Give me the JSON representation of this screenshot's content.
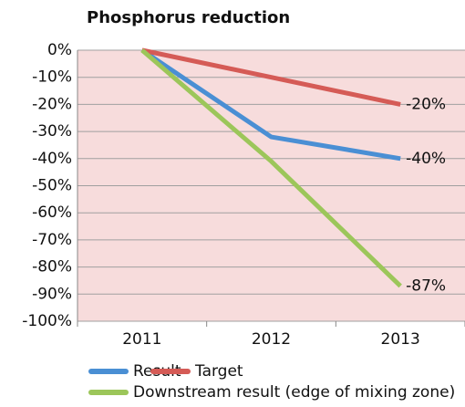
{
  "chart_data": {
    "type": "line",
    "title": "Phosphorus reduction",
    "categories": [
      "2011",
      "2012",
      "2013"
    ],
    "series": [
      {
        "name": "Result",
        "color": "#4a8fd4",
        "values": [
          0,
          -32,
          -40
        ],
        "value_labels": [
          null,
          null,
          "-40%"
        ]
      },
      {
        "name": "Target",
        "color": "#d55b56",
        "values": [
          0,
          -10,
          -20
        ],
        "value_labels": [
          null,
          null,
          "-20%"
        ]
      },
      {
        "name": "Downstream result (edge of mixing zone)",
        "color": "#9cc65a",
        "values": [
          0,
          -41,
          -87
        ],
        "value_labels": [
          null,
          null,
          "-87%"
        ]
      }
    ],
    "ylim": [
      -100,
      0
    ],
    "yticks": [
      {
        "value": 0,
        "label": "0%"
      },
      {
        "value": -10,
        "label": "-10%"
      },
      {
        "value": -20,
        "label": "-20%"
      },
      {
        "value": -30,
        "label": "-30%"
      },
      {
        "value": -40,
        "label": "-40%"
      },
      {
        "value": -50,
        "label": "-50%"
      },
      {
        "value": -60,
        "label": "-60%"
      },
      {
        "value": -70,
        "label": "-70%"
      },
      {
        "value": -80,
        "label": "-80%"
      },
      {
        "value": -90,
        "label": "-90%"
      },
      {
        "value": -100,
        "label": "-100%"
      }
    ],
    "grid": true,
    "plot_background": "#f7dcdc",
    "legend": "bottom"
  }
}
